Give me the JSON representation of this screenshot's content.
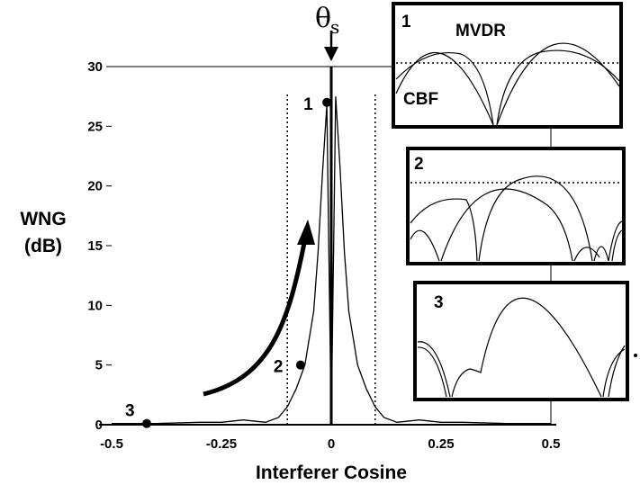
{
  "chart_data": {
    "type": "line",
    "title": "",
    "xlabel": "Interferer Cosine",
    "ylabel": [
      "WNG",
      "(dB)"
    ],
    "xlim": [
      -0.5,
      0.5
    ],
    "ylim": [
      0,
      30
    ],
    "xticks": [
      {
        "value": -0.5,
        "label": "-0.5"
      },
      {
        "value": -0.25,
        "label": "-0.25"
      },
      {
        "value": 0,
        "label": "0"
      },
      {
        "value": 0.25,
        "label": "0.25"
      },
      {
        "value": 0.5,
        "label": "0.5"
      }
    ],
    "yticks": [
      {
        "value": 0,
        "label": "0"
      },
      {
        "value": 5,
        "label": "5"
      },
      {
        "value": 10,
        "label": "10"
      },
      {
        "value": 15,
        "label": "15"
      },
      {
        "value": 20,
        "label": "20"
      },
      {
        "value": 25,
        "label": "25"
      },
      {
        "value": 30,
        "label": "30"
      }
    ],
    "steering_marker": {
      "symbol": "θ",
      "subscript": "s",
      "x": 0
    },
    "series": [
      {
        "x": [
          -0.5,
          -0.4,
          -0.3,
          -0.25,
          -0.2,
          -0.15,
          -0.12,
          -0.1,
          -0.08,
          -0.06,
          -0.04,
          -0.03,
          -0.02,
          -0.01,
          0,
          0.01,
          0.02,
          0.03,
          0.04,
          0.06,
          0.08,
          0.1,
          0.12,
          0.15,
          0.2,
          0.25,
          0.3,
          0.4,
          0.5
        ],
        "y": [
          0.1,
          0.1,
          0.2,
          0.2,
          0.4,
          0.2,
          0.6,
          1.5,
          3.0,
          5.0,
          9.5,
          14.5,
          21.0,
          26.8,
          0,
          27.5,
          21.5,
          14.5,
          9.5,
          5.0,
          3.0,
          1.5,
          0.6,
          0.2,
          0.4,
          0.2,
          0.2,
          0.1,
          0.1
        ]
      }
    ],
    "points": [
      {
        "label": "1",
        "x": -0.01,
        "y": 27
      },
      {
        "label": "2",
        "x": -0.07,
        "y": 5
      },
      {
        "label": "3",
        "x": -0.42,
        "y": 0.1
      }
    ],
    "reference_lines": {
      "hline_y": 30,
      "vlines_x": [
        -0.1,
        0.1
      ],
      "solid_vline_x": 0.5
    },
    "insets": [
      {
        "label": "1",
        "series_labels": [
          "MVDR",
          "CBF"
        ]
      },
      {
        "label": "2"
      },
      {
        "label": "3"
      }
    ]
  }
}
